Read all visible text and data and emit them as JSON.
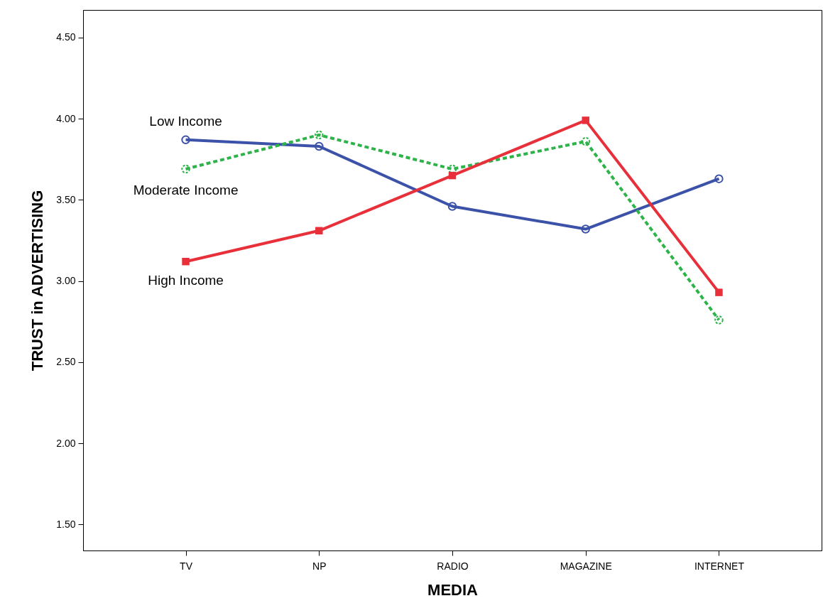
{
  "chart_data": {
    "type": "line",
    "xlabel": "MEDIA",
    "ylabel": "TRUST in ADVERTISING",
    "categories": [
      "TV",
      "NP",
      "RADIO",
      "MAGAZINE",
      "INTERNET"
    ],
    "series": [
      {
        "name": "Low Income",
        "color": "#3b52a8",
        "marker": "circle",
        "line_style": "solid",
        "values": [
          3.87,
          3.83,
          3.46,
          3.32,
          3.63
        ]
      },
      {
        "name": "Moderate Income",
        "color": "#2db34a",
        "marker": "circle",
        "line_style": "dashed",
        "values": [
          3.69,
          3.9,
          3.69,
          3.86,
          2.76
        ]
      },
      {
        "name": "High Income",
        "color": "#e8303a",
        "marker": "square",
        "line_style": "solid",
        "values": [
          3.12,
          3.31,
          3.65,
          3.99,
          2.93
        ]
      }
    ],
    "ylim": [
      1.34,
      4.67
    ],
    "yticks": [
      {
        "value": 1.5,
        "label": "1.50"
      },
      {
        "value": 2,
        "label": "2.00"
      },
      {
        "value": 2.5,
        "label": "2.50"
      },
      {
        "value": 3,
        "label": "3.00"
      },
      {
        "value": 3.5,
        "label": "3.50"
      },
      {
        "value": 4,
        "label": "4.00"
      },
      {
        "value": 4.5,
        "label": "4.50"
      }
    ],
    "grid": false,
    "legend": false
  }
}
